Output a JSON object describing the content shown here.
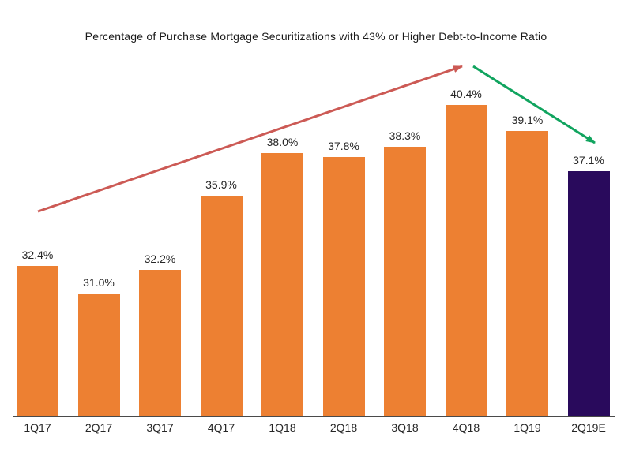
{
  "chart_data": {
    "type": "bar",
    "title": "Percentage of Purchase Mortgage Securitizations with 43% or Higher Debt-to-Income Ratio",
    "categories": [
      "1Q17",
      "2Q17",
      "3Q17",
      "4Q17",
      "1Q18",
      "2Q18",
      "3Q18",
      "4Q18",
      "1Q19",
      "2Q19E"
    ],
    "values": [
      32.4,
      31.0,
      32.2,
      35.9,
      38.0,
      37.8,
      38.3,
      40.4,
      39.1,
      37.1
    ],
    "value_labels": [
      "32.4%",
      "31.0%",
      "32.2%",
      "35.9%",
      "38.0%",
      "37.8%",
      "38.3%",
      "40.4%",
      "39.1%",
      "37.1%"
    ],
    "xlabel": "",
    "ylabel": "",
    "ylim": [
      24.9,
      42.5
    ],
    "grid": false,
    "legend": "none",
    "bar_color": "#ED8032",
    "highlight_bar_color": "#290A5C",
    "highlight_category": "2Q19E",
    "axis_color": "#4a4a4a",
    "annotations": [
      {
        "type": "arrow",
        "name": "uptrend-arrow",
        "color": "#CC5A55",
        "from": [
          48,
          268
        ],
        "to": [
          585,
          84
        ]
      },
      {
        "type": "arrow",
        "name": "downtrend-arrow",
        "color": "#11A45F",
        "from": [
          599,
          84
        ],
        "to": [
          753,
          181
        ]
      }
    ]
  }
}
